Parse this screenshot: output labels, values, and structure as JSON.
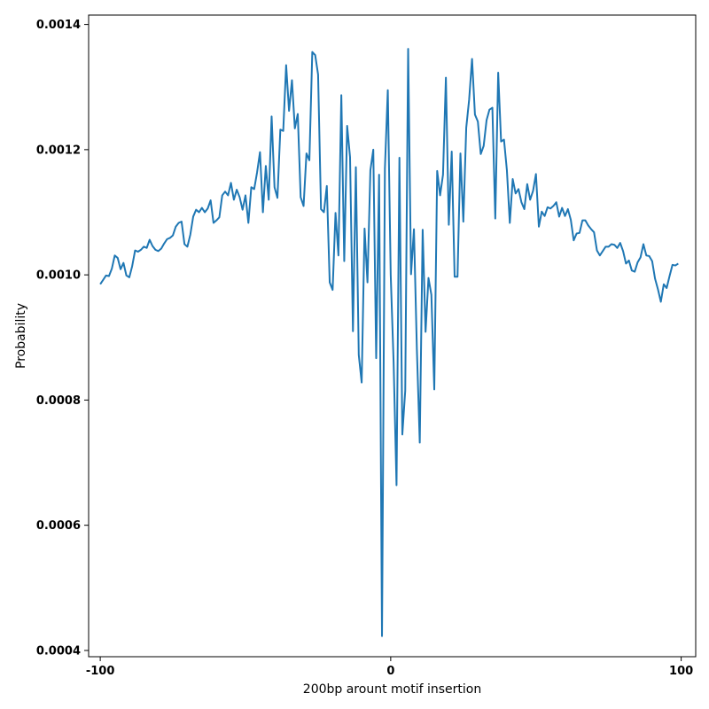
{
  "chart_data": {
    "type": "line",
    "title": "",
    "xlabel": "200bp arount motif insertion",
    "ylabel": "Probability",
    "xlim": [
      -104,
      105
    ],
    "ylim": [
      0.00039,
      0.001415
    ],
    "xticks": [
      -100,
      0,
      100
    ],
    "xtick_labels": [
      "-100",
      "0",
      "100"
    ],
    "yticks": [
      0.0004,
      0.0006,
      0.0008,
      0.001,
      0.0012,
      0.0014
    ],
    "ytick_labels": [
      "0.0004",
      "0.0006",
      "0.0008",
      "0.0010",
      "0.0012",
      "0.0014"
    ],
    "grid": false,
    "line_color": "#1f77b4",
    "series": [
      {
        "x_start": -100,
        "x_step": 1,
        "values": [
          0.000985,
          0.000992,
          0.000999,
          0.000998,
          0.00101,
          0.001031,
          0.001027,
          0.001009,
          0.001019,
          0.000999,
          0.000996,
          0.001014,
          0.001039,
          0.001037,
          0.00104,
          0.001045,
          0.001043,
          0.001056,
          0.001046,
          0.00104,
          0.001038,
          0.001042,
          0.00105,
          0.001057,
          0.001059,
          0.001063,
          0.001077,
          0.001083,
          0.001085,
          0.001049,
          0.001045,
          0.001064,
          0.001093,
          0.001104,
          0.0011,
          0.001107,
          0.0011,
          0.001106,
          0.001119,
          0.001083,
          0.001087,
          0.001092,
          0.001127,
          0.001133,
          0.001127,
          0.001147,
          0.00112,
          0.001136,
          0.001124,
          0.001104,
          0.001127,
          0.001083,
          0.00114,
          0.001137,
          0.001164,
          0.001196,
          0.0011,
          0.001174,
          0.00112,
          0.001253,
          0.00114,
          0.001123,
          0.001232,
          0.00123,
          0.001335,
          0.001262,
          0.001311,
          0.001234,
          0.001257,
          0.001124,
          0.00111,
          0.001194,
          0.001183,
          0.001356,
          0.001351,
          0.00132,
          0.001105,
          0.0011,
          0.001142,
          0.000988,
          0.000976,
          0.001099,
          0.001031,
          0.001287,
          0.001022,
          0.001238,
          0.001188,
          0.00091,
          0.001172,
          0.000872,
          0.000828,
          0.001074,
          0.000988,
          0.001167,
          0.0012,
          0.000867,
          0.00116,
          0.000423,
          0.00117,
          0.001295,
          0.001,
          0.00086,
          0.000664,
          0.001187,
          0.000745,
          0.000815,
          0.001361,
          0.001001,
          0.001073,
          0.000882,
          0.000732,
          0.001072,
          0.000909,
          0.000995,
          0.000968,
          0.000817,
          0.001166,
          0.001127,
          0.00116,
          0.001315,
          0.00108,
          0.001197,
          0.000997,
          0.000997,
          0.001194,
          0.001085,
          0.001235,
          0.00128,
          0.001345,
          0.001256,
          0.001245,
          0.001193,
          0.001206,
          0.001247,
          0.001264,
          0.001267,
          0.00109,
          0.001323,
          0.001213,
          0.001216,
          0.001167,
          0.001083,
          0.001153,
          0.00113,
          0.001137,
          0.001116,
          0.001105,
          0.001145,
          0.00112,
          0.001134,
          0.001161,
          0.001077,
          0.001101,
          0.001094,
          0.001108,
          0.001106,
          0.00111,
          0.001116,
          0.001093,
          0.001107,
          0.001094,
          0.001105,
          0.001088,
          0.001055,
          0.001066,
          0.001067,
          0.001087,
          0.001087,
          0.001079,
          0.001073,
          0.001068,
          0.001039,
          0.001031,
          0.001038,
          0.001045,
          0.001045,
          0.001049,
          0.001048,
          0.001043,
          0.001051,
          0.001038,
          0.001018,
          0.001023,
          0.001007,
          0.001005,
          0.00102,
          0.001028,
          0.001049,
          0.001031,
          0.00103,
          0.001022,
          0.000994,
          0.000977,
          0.000957,
          0.000985,
          0.000979,
          0.000998,
          0.001016,
          0.001015,
          0.001018
        ]
      }
    ]
  }
}
